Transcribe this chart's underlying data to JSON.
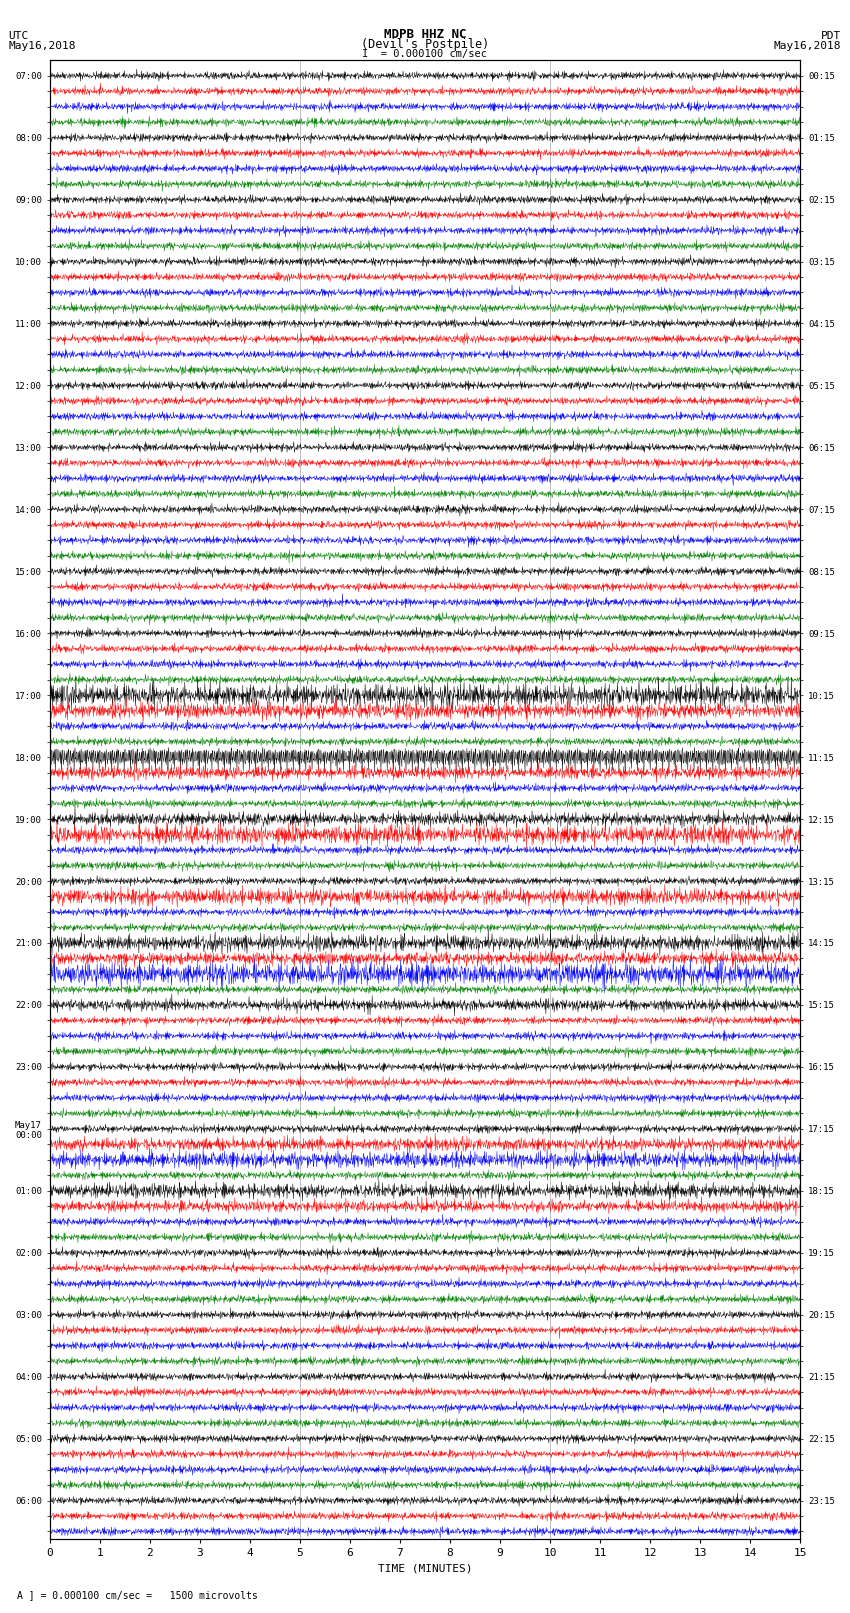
{
  "title_line1": "MDPB HHZ NC",
  "title_line2": "(Devil's Postpile)",
  "scale_text": "I  = 0.000100 cm/sec",
  "left_label_line1": "UTC",
  "left_label_line2": "May16,2018",
  "right_label_line1": "PDT",
  "right_label_line2": "May16,2018",
  "bottom_label": "TIME (MINUTES)",
  "footnote": "A ] = 0.000100 cm/sec =   1500 microvolts",
  "xlabel_ticks": [
    0,
    1,
    2,
    3,
    4,
    5,
    6,
    7,
    8,
    9,
    10,
    11,
    12,
    13,
    14,
    15
  ],
  "background_color": "#ffffff",
  "trace_colors": [
    "black",
    "red",
    "blue",
    "green"
  ],
  "utc_times": [
    "07:00",
    "",
    "",
    "",
    "08:00",
    "",
    "",
    "",
    "09:00",
    "",
    "",
    "",
    "10:00",
    "",
    "",
    "",
    "11:00",
    "",
    "",
    "",
    "12:00",
    "",
    "",
    "",
    "13:00",
    "",
    "",
    "",
    "14:00",
    "",
    "",
    "",
    "15:00",
    "",
    "",
    "",
    "16:00",
    "",
    "",
    "",
    "17:00",
    "",
    "",
    "",
    "18:00",
    "",
    "",
    "",
    "19:00",
    "",
    "",
    "",
    "20:00",
    "",
    "",
    "",
    "21:00",
    "",
    "",
    "",
    "22:00",
    "",
    "",
    "",
    "23:00",
    "",
    "",
    "",
    "May17\n00:00",
    "",
    "",
    "",
    "01:00",
    "",
    "",
    "",
    "02:00",
    "",
    "",
    "",
    "03:00",
    "",
    "",
    "",
    "04:00",
    "",
    "",
    "",
    "05:00",
    "",
    "",
    "",
    "06:00",
    "",
    ""
  ],
  "pdt_times": [
    "00:15",
    "",
    "",
    "",
    "01:15",
    "",
    "",
    "",
    "02:15",
    "",
    "",
    "",
    "03:15",
    "",
    "",
    "",
    "04:15",
    "",
    "",
    "",
    "05:15",
    "",
    "",
    "",
    "06:15",
    "",
    "",
    "",
    "07:15",
    "",
    "",
    "",
    "08:15",
    "",
    "",
    "",
    "09:15",
    "",
    "",
    "",
    "10:15",
    "",
    "",
    "",
    "11:15",
    "",
    "",
    "",
    "12:15",
    "",
    "",
    "",
    "13:15",
    "",
    "",
    "",
    "14:15",
    "",
    "",
    "",
    "15:15",
    "",
    "",
    "",
    "16:15",
    "",
    "",
    "",
    "17:15",
    "",
    "",
    "",
    "18:15",
    "",
    "",
    "",
    "19:15",
    "",
    "",
    "",
    "20:15",
    "",
    "",
    "",
    "21:15",
    "",
    "",
    "",
    "22:15",
    "",
    "",
    "",
    "23:15",
    "",
    ""
  ],
  "vline_positions": [
    5.0,
    10.0
  ],
  "amplitude_scale": 0.12,
  "noise_seed": 42
}
